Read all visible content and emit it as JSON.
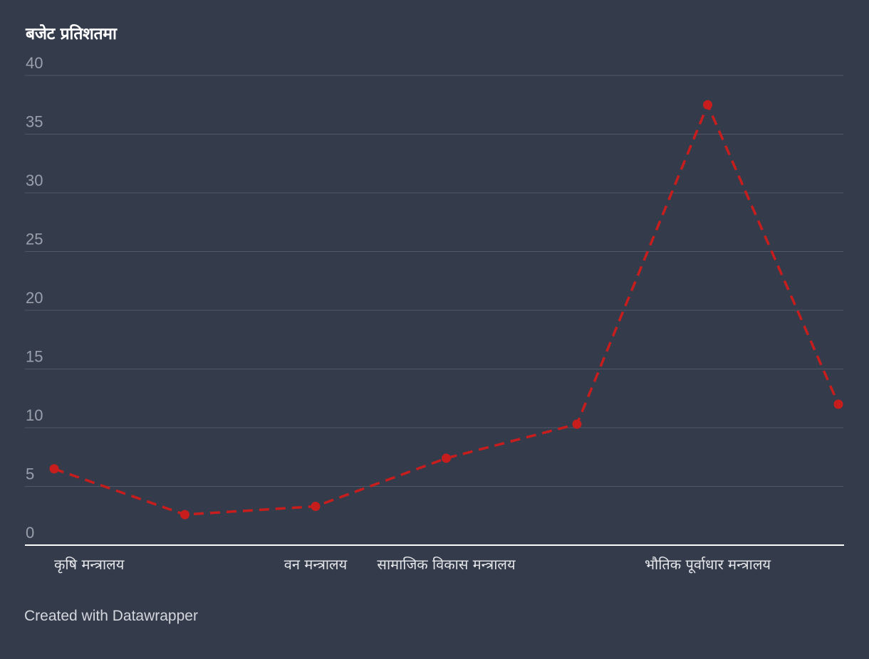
{
  "chart_data": {
    "type": "line",
    "title": "बजेट प्रतिशतमा",
    "subtitle": "",
    "xlabel": "",
    "ylabel": "",
    "categories": [
      "कृषि मन्त्रालय",
      "",
      "वन मन्त्रालय",
      "सामाजिक विकास मन्त्रालय",
      "",
      "भौतिक पूर्वाधार मन्त्रालय",
      ""
    ],
    "series": [
      {
        "values": [
          6.5,
          2.6,
          3.3,
          7.4,
          10.3,
          37.5,
          12.0
        ]
      }
    ],
    "ylim": [
      0,
      40
    ],
    "yticks": [
      0,
      5,
      10,
      15,
      20,
      25,
      30,
      35,
      40
    ],
    "grid": true,
    "legend": "none",
    "line_style": "dashed",
    "colors": {
      "background": "#343c4c",
      "line": "#c71e1d",
      "grid": "#4f5869",
      "baseline": "#ffffff",
      "ytick": "#9aa0ab",
      "xtick": "#e6e7ea",
      "title": "#ffffff"
    }
  },
  "footer": {
    "credit": "Created with Datawrapper"
  }
}
